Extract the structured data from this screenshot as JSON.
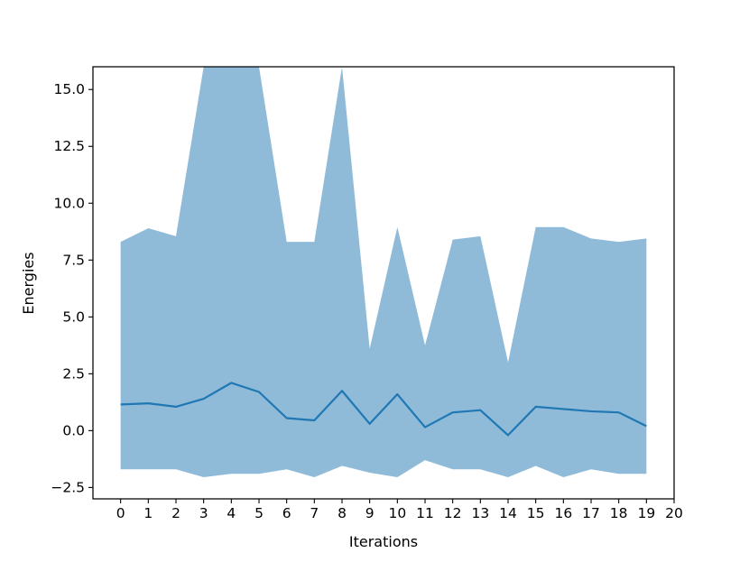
{
  "chart_data": {
    "type": "area",
    "title": "",
    "xlabel": "Iterations",
    "ylabel": "Energies",
    "xlim": [
      -1,
      20
    ],
    "ylim": [
      -3.0,
      16.0
    ],
    "xticks": [
      0,
      1,
      2,
      3,
      4,
      5,
      6,
      7,
      8,
      9,
      10,
      11,
      12,
      13,
      14,
      15,
      16,
      17,
      18,
      19,
      20
    ],
    "yticks": [
      -2.5,
      0.0,
      2.5,
      5.0,
      7.5,
      10.0,
      12.5,
      15.0
    ],
    "ytick_labels": [
      "−2.5",
      "0.0",
      "2.5",
      "5.0",
      "7.5",
      "10.0",
      "12.5",
      "15.0"
    ],
    "grid": false,
    "legend": "none",
    "x": [
      0,
      1,
      2,
      3,
      4,
      5,
      6,
      7,
      8,
      9,
      10,
      11,
      12,
      13,
      14,
      15,
      16,
      17,
      18,
      19
    ],
    "series": [
      {
        "values": [
          1.15,
          1.2,
          1.05,
          1.4,
          2.1,
          1.7,
          0.55,
          0.45,
          1.75,
          0.3,
          1.6,
          0.15,
          0.8,
          0.9,
          -0.2,
          1.05,
          0.95,
          0.85,
          0.8,
          0.2
        ],
        "color": "#1f77b4"
      }
    ],
    "band": {
      "upper": [
        8.3,
        8.9,
        8.55,
        16.0,
        16.0,
        16.0,
        8.3,
        8.3,
        16.0,
        3.6,
        8.95,
        3.75,
        8.4,
        8.55,
        3.0,
        8.95,
        8.95,
        8.45,
        8.3,
        8.45
      ],
      "lower": [
        -1.7,
        -1.7,
        -1.7,
        -2.05,
        -1.9,
        -1.9,
        -1.7,
        -2.05,
        -1.55,
        -1.85,
        -2.05,
        -1.3,
        -1.7,
        -1.7,
        -2.05,
        -1.55,
        -2.05,
        -1.7,
        -1.9,
        -1.9
      ],
      "color": "#1f77b4",
      "alpha": 0.5
    }
  }
}
